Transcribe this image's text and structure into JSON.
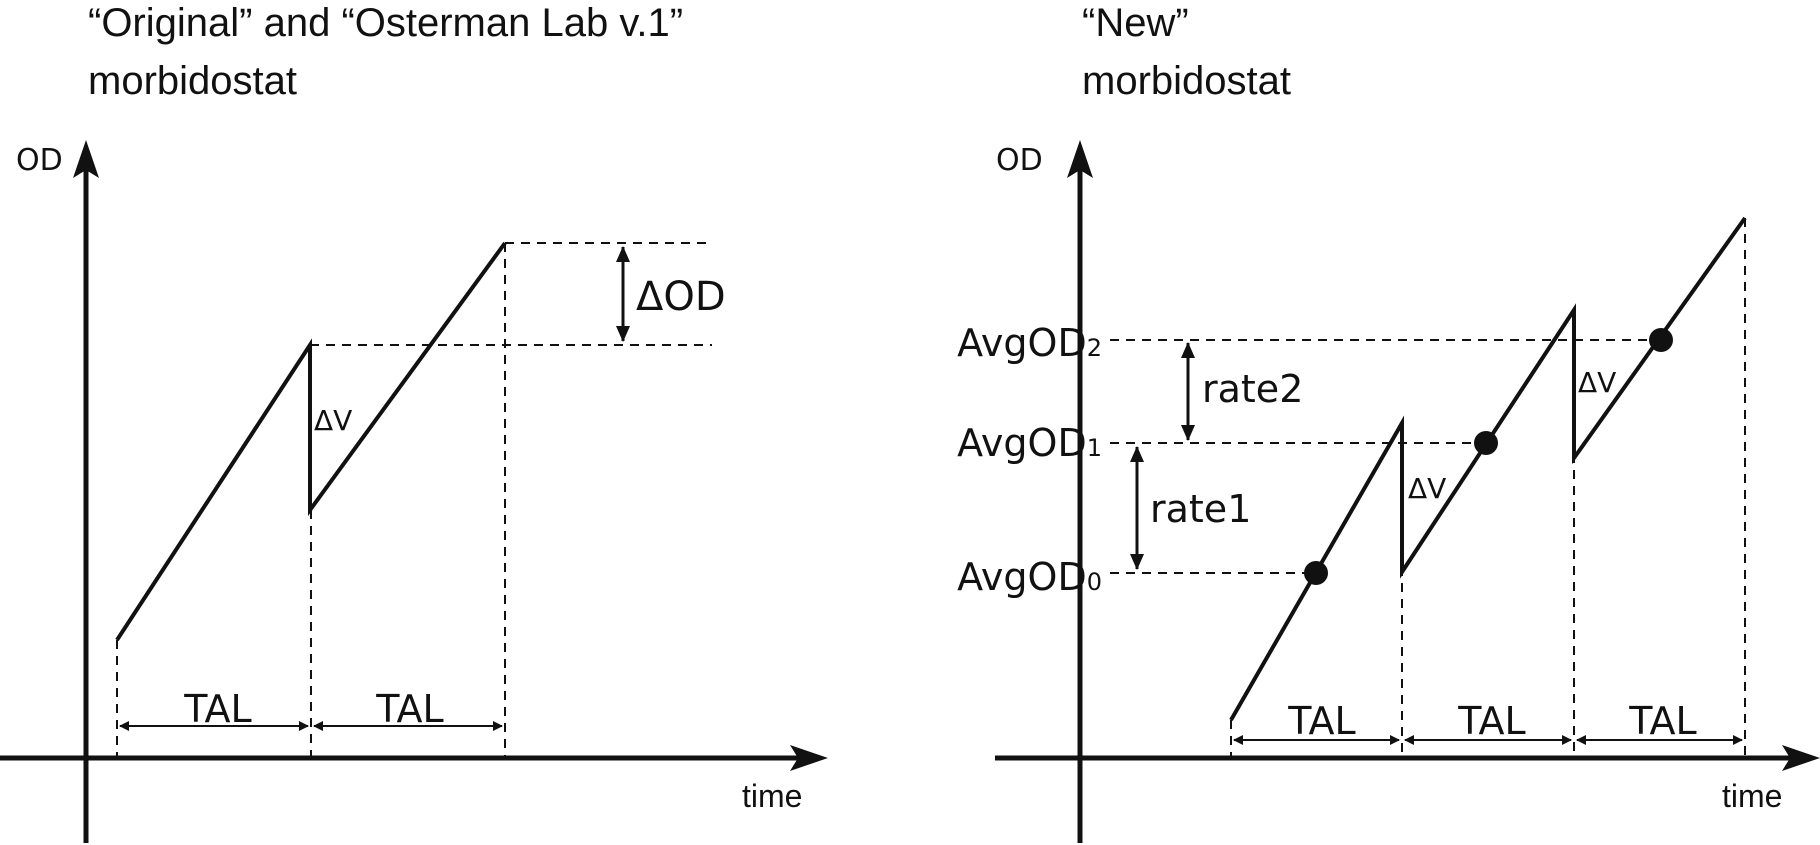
{
  "left_panel": {
    "title_line1": "“Original” and “Osterman Lab v.1”",
    "title_line2": "morbidostat",
    "y_axis_label": "OD",
    "x_axis_label": "time",
    "delta_od_label": "ΔOD",
    "delta_v_label": "ΔV",
    "tal_labels": [
      "TAL",
      "TAL"
    ]
  },
  "right_panel": {
    "title_line1": "“New”",
    "title_line2": "morbidostat",
    "y_axis_label": "OD",
    "x_axis_label": "time",
    "avg_labels": [
      "AvgOD",
      "AvgOD",
      "AvgOD"
    ],
    "avg_subscripts": [
      "2",
      "1",
      "0"
    ],
    "rate_labels": [
      "rate2",
      "rate1"
    ],
    "delta_v_labels": [
      "ΔV",
      "ΔV"
    ],
    "tal_labels": [
      "TAL",
      "TAL",
      "TAL"
    ]
  },
  "colors": {
    "stroke": "#111111",
    "background": "#ffffff"
  }
}
